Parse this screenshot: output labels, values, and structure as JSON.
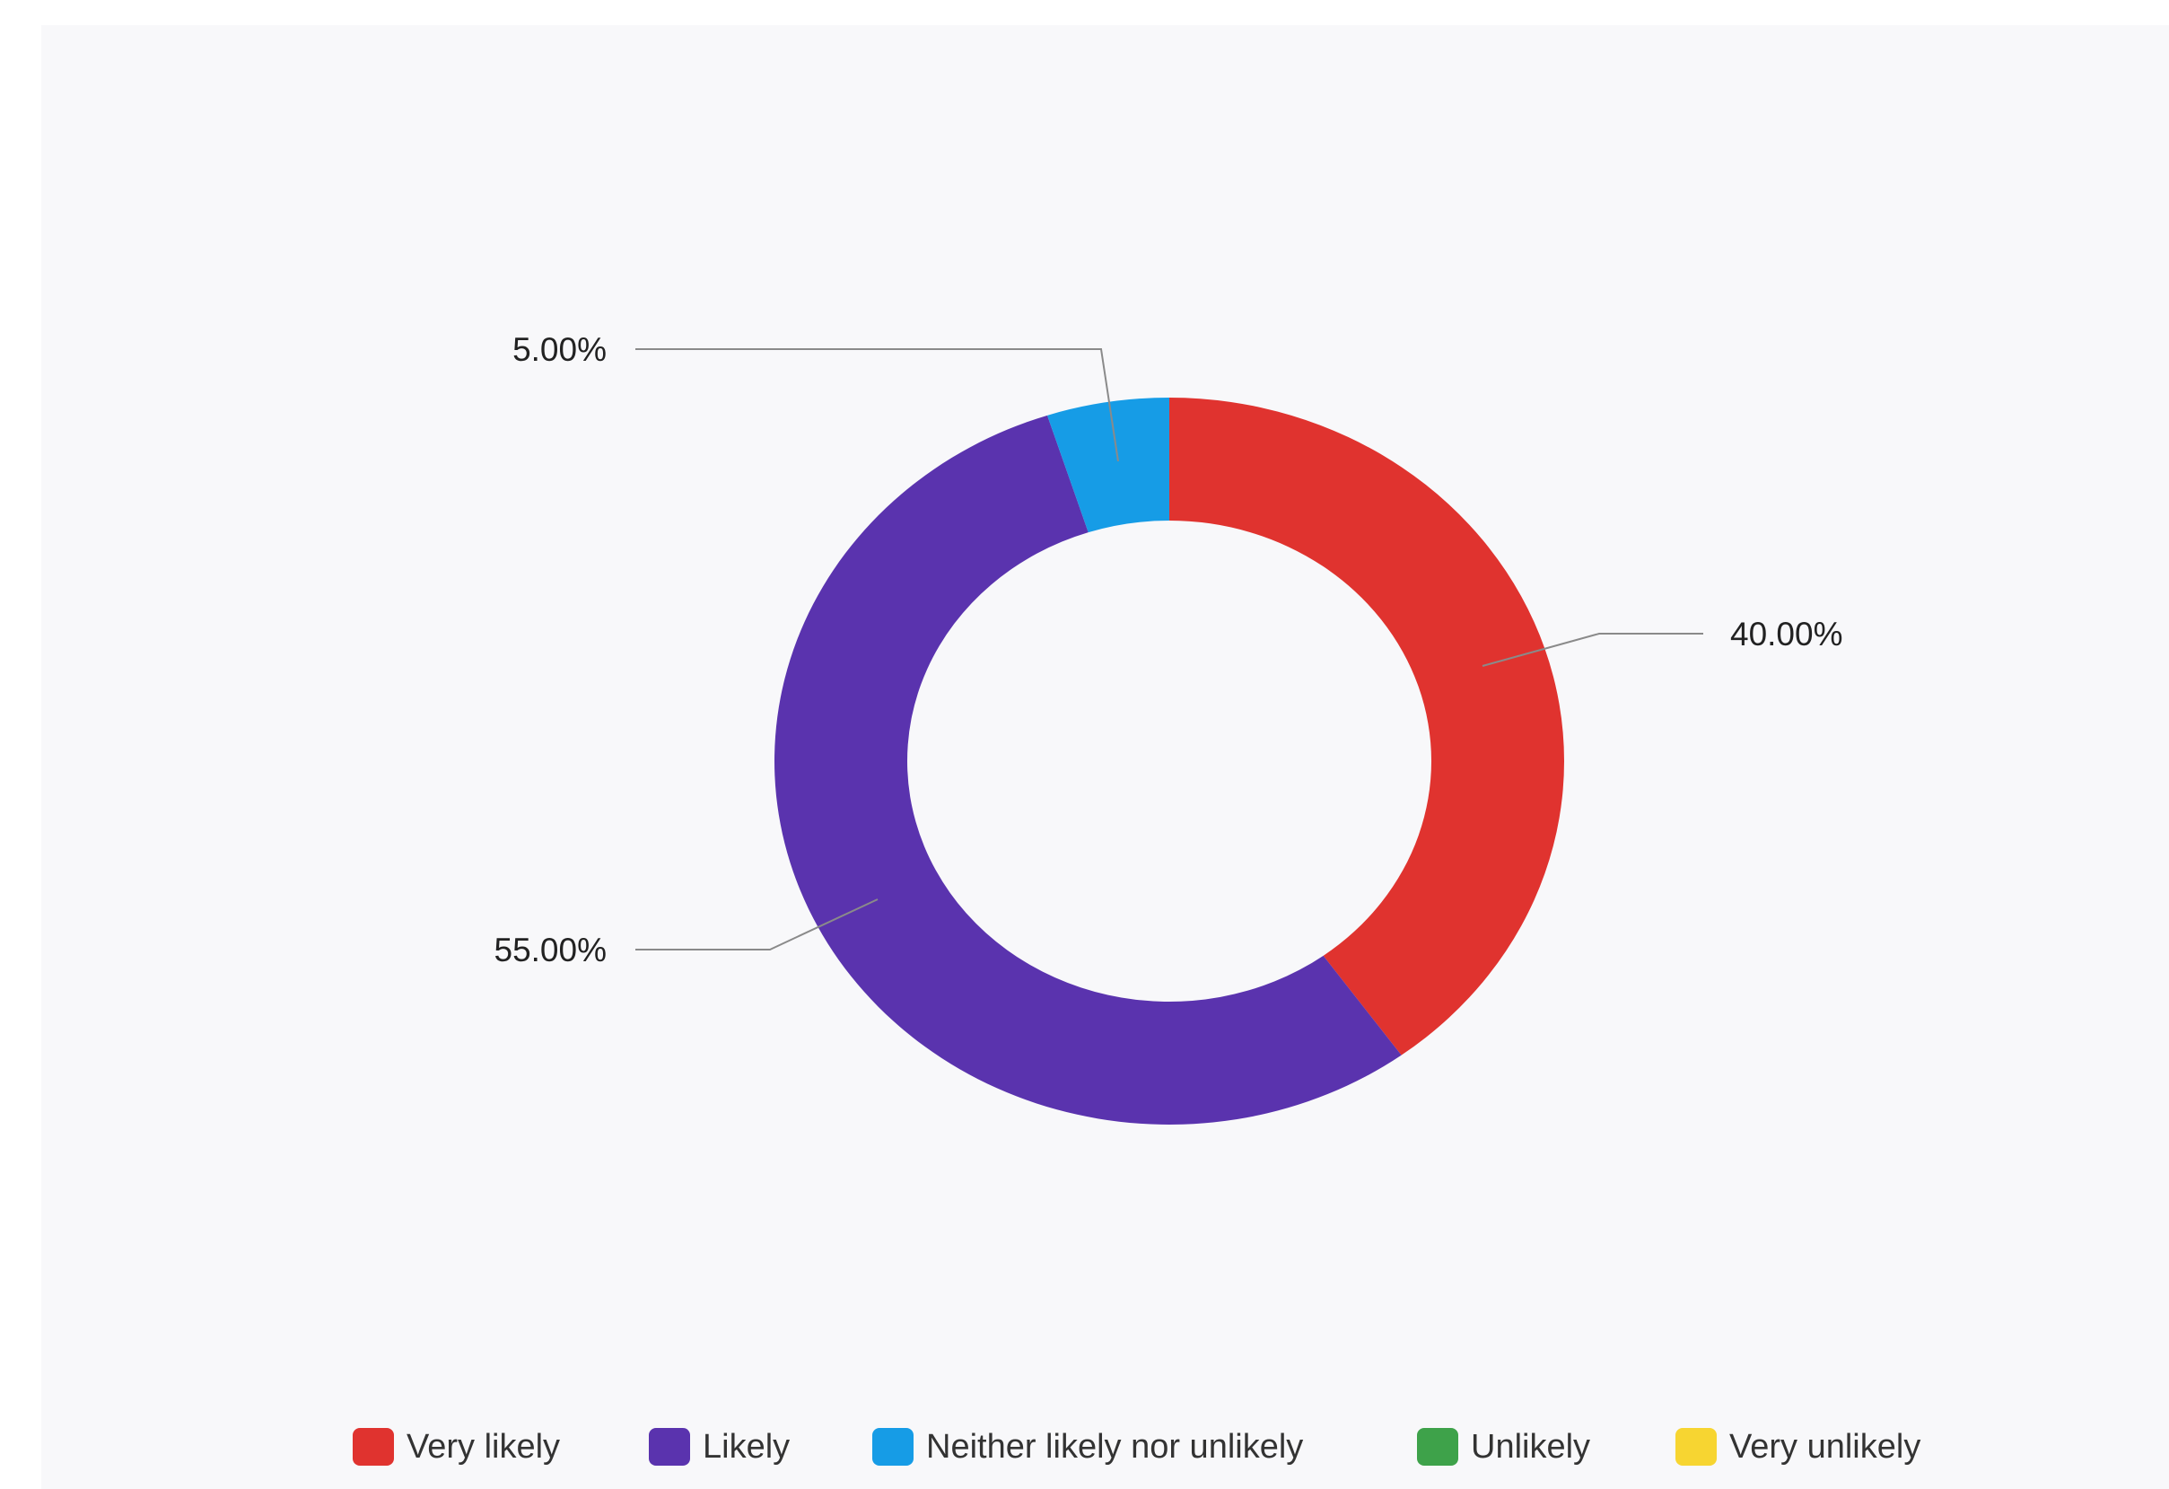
{
  "chart_data": {
    "type": "donut",
    "categories": [
      "Very likely",
      "Likely",
      "Neither likely nor unlikely",
      "Unlikely",
      "Very unlikely"
    ],
    "values": [
      40.0,
      55.0,
      5.0,
      0.0,
      0.0
    ],
    "data_labels": [
      "40.00%",
      "55.00%",
      "5.00%",
      "",
      ""
    ],
    "colors": [
      "#e0332f",
      "#5a33ae",
      "#169ce6",
      "#3ea24a",
      "#f7d531"
    ],
    "unit": "%",
    "legend_position": "bottom"
  }
}
